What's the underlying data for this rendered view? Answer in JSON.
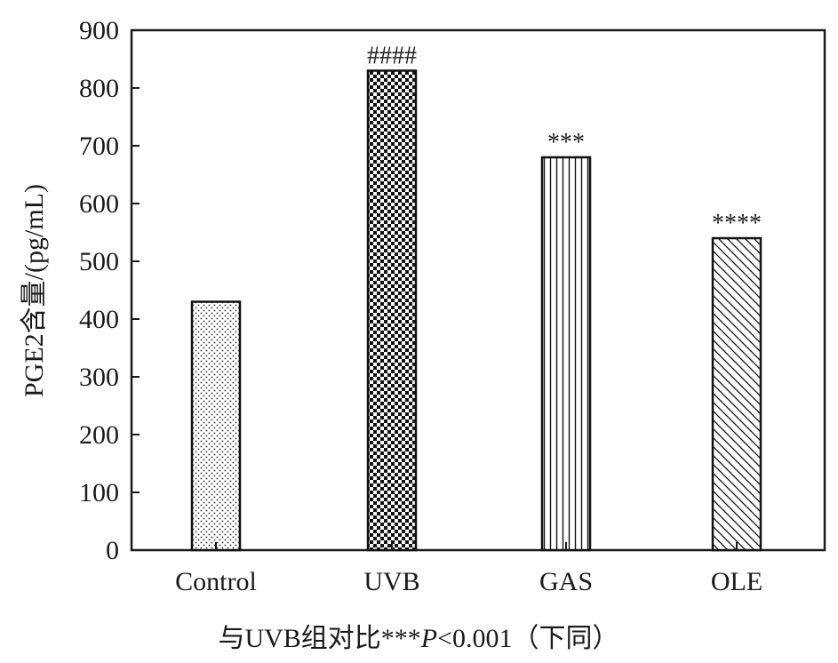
{
  "chart_data": {
    "type": "bar",
    "categories": [
      "Control",
      "UVB",
      "GAS",
      "OLE"
    ],
    "values": [
      430,
      830,
      680,
      540
    ],
    "patterns": [
      "dots",
      "checker",
      "vertical",
      "diagonal"
    ],
    "annotations": [
      "",
      "####",
      "***",
      "****"
    ],
    "ylabel": "PGE2含量/(pg/mL)",
    "xlabel": "",
    "ylim": [
      0,
      900
    ],
    "yticks": [
      0,
      100,
      200,
      300,
      400,
      500,
      600,
      700,
      800,
      900
    ],
    "grid": false
  },
  "footnote": {
    "prefix": "与UVB组对比***",
    "p_symbol": "P",
    "suffix": "<0.001（下同）"
  }
}
